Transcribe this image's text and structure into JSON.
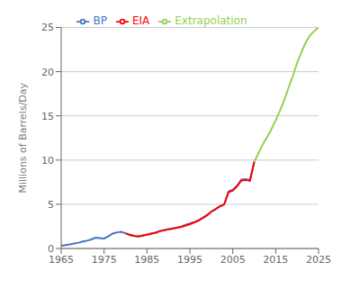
{
  "chart_data": {
    "type": "line",
    "ylabel": "Millions of Barrels/Day",
    "x": [
      1965,
      1966,
      1967,
      1968,
      1969,
      1970,
      1971,
      1972,
      1973,
      1974,
      1975,
      1976,
      1977,
      1978,
      1979,
      1980,
      1981,
      1982,
      1983,
      1984,
      1985,
      1986,
      1987,
      1988,
      1989,
      1990,
      1991,
      1992,
      1993,
      1994,
      1995,
      1996,
      1997,
      1998,
      1999,
      2000,
      2001,
      2002,
      2003,
      2004,
      2005,
      2006,
      2007,
      2008,
      2009,
      2010,
      2011,
      2012,
      2013,
      2014,
      2015,
      2016,
      2017,
      2018,
      2019,
      2020,
      2021,
      2022,
      2023,
      2024,
      2025
    ],
    "xlim": [
      1965,
      2025
    ],
    "xticks": [
      1965,
      1975,
      1985,
      1995,
      2005,
      2015,
      2025
    ],
    "ylim": [
      0,
      25
    ],
    "yticks": [
      0,
      5,
      10,
      15,
      20,
      25
    ],
    "grid": true,
    "legend": "top",
    "series": [
      {
        "name": "BP",
        "color": "#4472C4",
        "values": [
          0.3,
          0.38,
          0.45,
          0.55,
          0.65,
          0.78,
          0.88,
          1.02,
          1.22,
          1.18,
          1.12,
          1.38,
          1.68,
          1.82,
          1.88,
          1.72,
          1.52,
          1.42,
          1.38,
          1.48,
          1.58,
          1.68,
          1.78,
          1.98,
          2.08,
          2.18,
          2.28,
          2.38,
          2.48,
          2.68,
          2.82,
          2.98,
          3.18,
          3.48,
          3.78,
          4.18,
          4.48,
          4.78,
          4.98,
          6.45,
          6.65,
          7.1,
          7.8,
          7.85,
          7.75,
          9.8,
          null,
          null,
          null,
          null,
          null,
          null,
          null,
          null,
          null,
          null,
          null,
          null,
          null,
          null,
          null
        ]
      },
      {
        "name": "EIA",
        "color": "#FF0000",
        "values": [
          null,
          null,
          null,
          null,
          null,
          null,
          null,
          null,
          null,
          null,
          null,
          null,
          null,
          null,
          null,
          1.72,
          1.55,
          1.42,
          1.35,
          1.45,
          1.55,
          1.68,
          1.78,
          1.95,
          2.05,
          2.15,
          2.25,
          2.35,
          2.45,
          2.6,
          2.75,
          2.95,
          3.15,
          3.45,
          3.75,
          4.15,
          4.45,
          4.78,
          4.98,
          6.35,
          6.55,
          7.05,
          7.7,
          7.75,
          7.65,
          9.8,
          null,
          null,
          null,
          null,
          null,
          null,
          null,
          null,
          null,
          null,
          null,
          null,
          null,
          null,
          null
        ]
      },
      {
        "name": "Extrapolation",
        "color": "#92D050",
        "values": [
          null,
          null,
          null,
          null,
          null,
          null,
          null,
          null,
          null,
          null,
          null,
          null,
          null,
          null,
          null,
          null,
          null,
          null,
          null,
          null,
          null,
          null,
          null,
          null,
          null,
          null,
          null,
          null,
          null,
          null,
          null,
          null,
          null,
          null,
          null,
          null,
          null,
          null,
          null,
          null,
          null,
          null,
          null,
          null,
          null,
          9.8,
          10.8,
          11.8,
          12.6,
          13.5,
          14.5,
          15.6,
          16.8,
          18.2,
          19.5,
          21.0,
          22.2,
          23.3,
          24.1,
          24.6,
          25.0
        ]
      }
    ]
  }
}
